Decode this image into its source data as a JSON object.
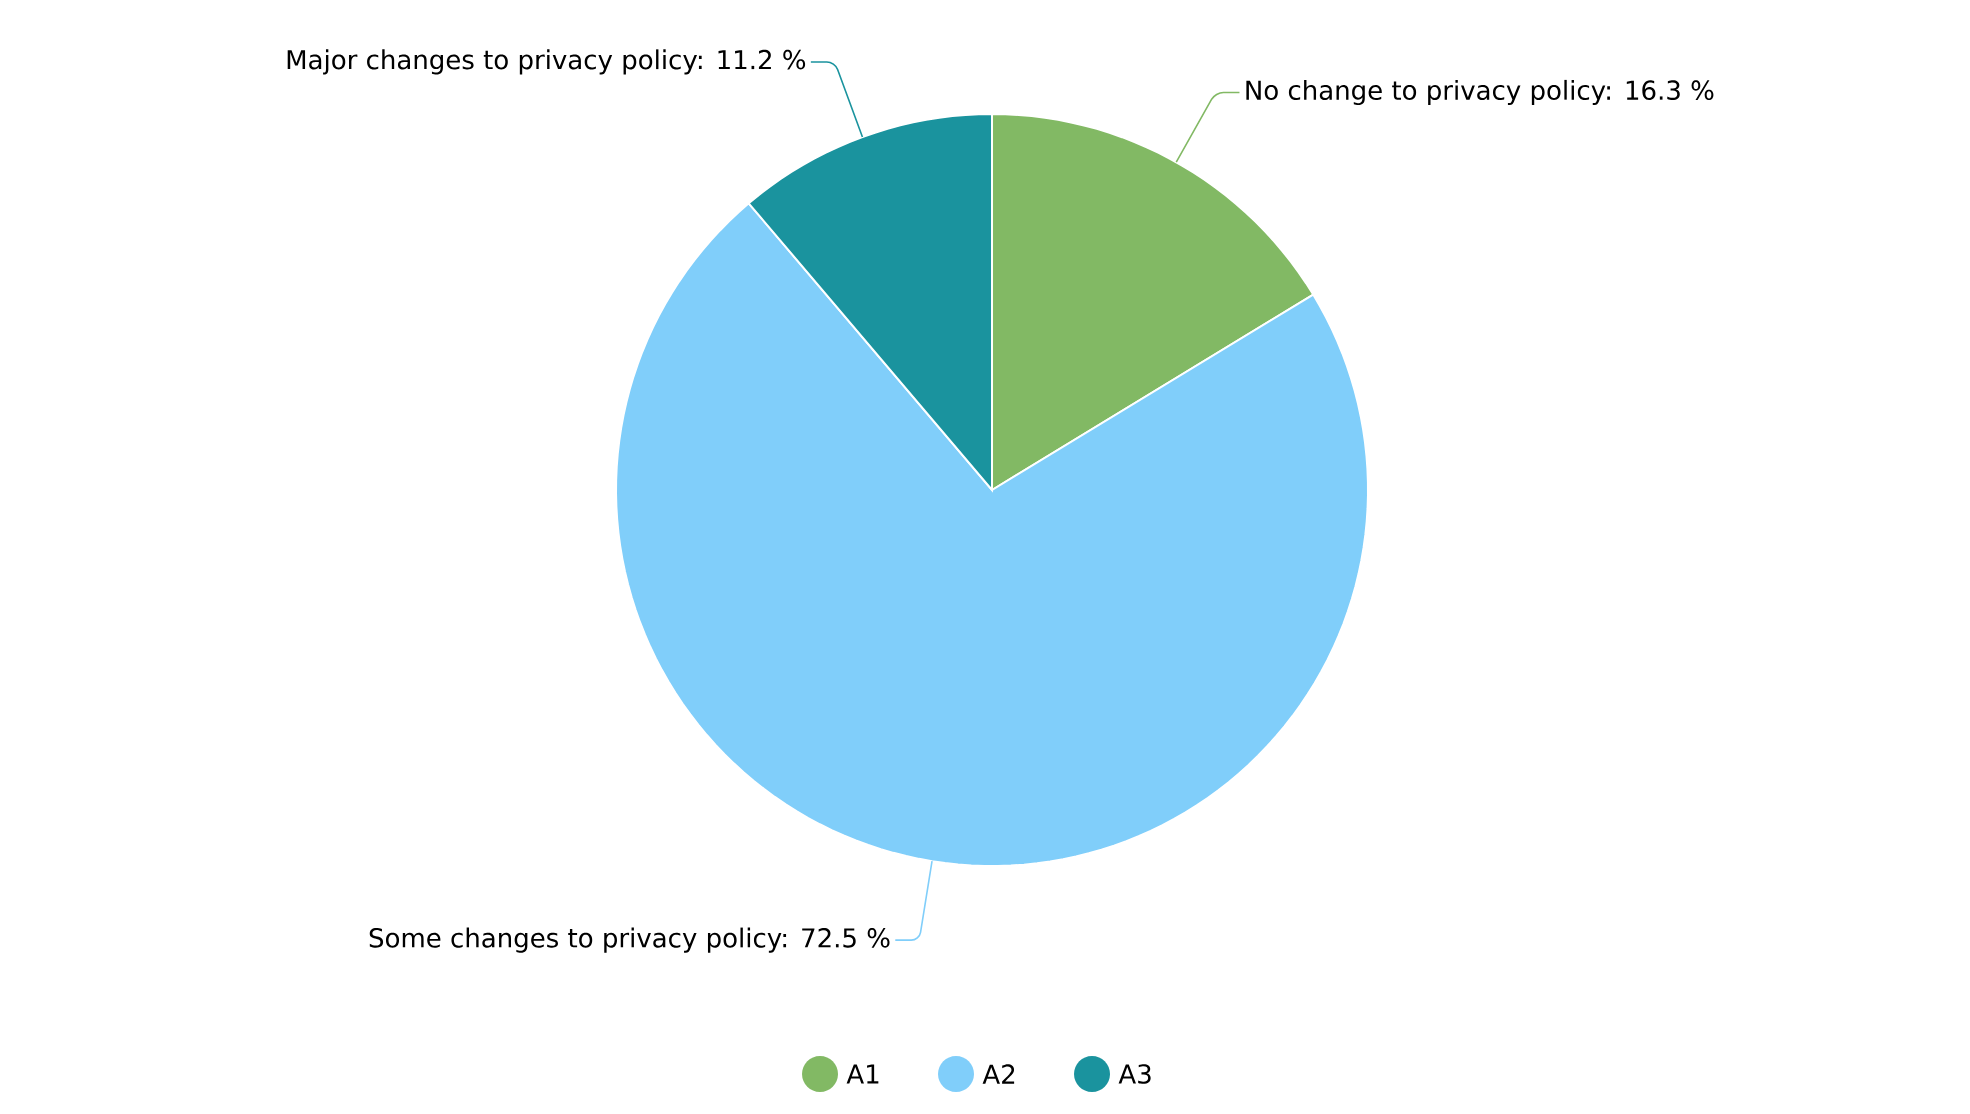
{
  "chart_data": {
    "type": "pie",
    "categories": [
      "A1",
      "A2",
      "A3"
    ],
    "values": [
      16.3,
      72.5,
      11.2
    ],
    "colors": [
      "#82b964",
      "#80cefa",
      "#1a939e"
    ],
    "value_labels": [
      "No change to privacy policy: 16.3 %",
      "Some changes to privacy policy: 72.5 %",
      "Major changes to privacy policy: 11.2 %"
    ],
    "legend": "bottom"
  }
}
